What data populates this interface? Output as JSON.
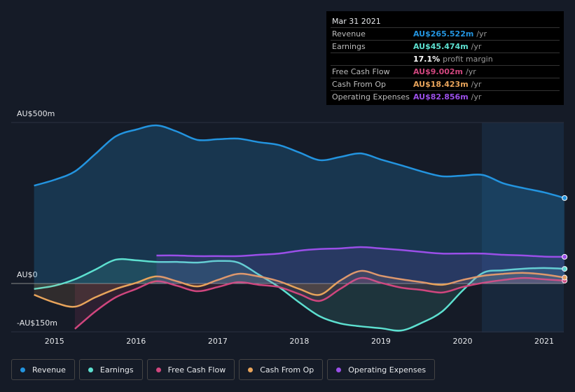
{
  "chart_data": {
    "type": "line",
    "x": [
      2014.75,
      2015,
      2015.25,
      2015.5,
      2015.75,
      2016,
      2016.25,
      2016.5,
      2016.75,
      2017,
      2017.25,
      2017.5,
      2017.75,
      2018,
      2018.25,
      2018.5,
      2018.75,
      2019,
      2019.25,
      2019.5,
      2019.75,
      2020,
      2020.25,
      2020.5,
      2020.75,
      2021,
      2021.25
    ],
    "xlim": [
      2014.47,
      2021.24
    ],
    "xticks": [
      2015,
      2016,
      2017,
      2018,
      2019,
      2020,
      2021
    ],
    "ylim": [
      -150,
      500
    ],
    "yticks": [
      {
        "value": 500,
        "label": "AU$500m"
      },
      {
        "value": 0,
        "label": "AU$0"
      },
      {
        "value": -150,
        "label": "-AU$150m"
      }
    ],
    "series": [
      {
        "name": "Revenue",
        "color": "#2394df",
        "values": [
          304,
          322,
          348,
          402,
          457,
          478,
          491,
          472,
          446,
          448,
          450,
          439,
          430,
          407,
          383,
          393,
          404,
          385,
          367,
          348,
          333,
          335,
          337,
          311,
          296,
          283,
          265.5
        ]
      },
      {
        "name": "Earnings",
        "color": "#5de0d0",
        "values": [
          -17,
          -7,
          13,
          43,
          74,
          72,
          67,
          67,
          65,
          70,
          65,
          28,
          -11,
          -59,
          -102,
          -124,
          -133,
          -139,
          -146,
          -122,
          -87,
          -22,
          33,
          41,
          46,
          48,
          45.5
        ]
      },
      {
        "name": "Free Cash Flow",
        "color": "#d0467e",
        "values": [
          null,
          null,
          -141,
          -87,
          -43,
          -17,
          7,
          -7,
          -24,
          -11,
          4,
          -4,
          -11,
          -33,
          -54,
          -17,
          17,
          2,
          -13,
          -20,
          -28,
          -11,
          2,
          11,
          17,
          13,
          9.0
        ]
      },
      {
        "name": "Cash From Op",
        "color": "#e8a45b",
        "values": [
          -35,
          -59,
          -72,
          -43,
          -17,
          2,
          22,
          7,
          -9,
          11,
          30,
          22,
          7,
          -17,
          -35,
          9,
          39,
          24,
          13,
          4,
          -4,
          11,
          24,
          30,
          33,
          28,
          18.4
        ]
      },
      {
        "name": "Operating Expenses",
        "color": "#9a4fe8",
        "values": [
          null,
          null,
          null,
          null,
          null,
          null,
          87,
          87,
          85,
          85,
          85,
          89,
          93,
          102,
          107,
          109,
          113,
          109,
          104,
          98,
          93,
          93,
          93,
          89,
          87,
          83.5,
          82.9
        ]
      }
    ]
  },
  "tooltip": {
    "date": "Mar 31 2021",
    "rows": [
      {
        "label": "Revenue",
        "value": "AU$265.522m",
        "unit": "/yr"
      },
      {
        "label": "Earnings",
        "value": "AU$45.474m",
        "unit": "/yr"
      },
      {
        "label": "",
        "value": "17.1%",
        "unit": "profit margin"
      },
      {
        "label": "Free Cash Flow",
        "value": "AU$9.002m",
        "unit": "/yr"
      },
      {
        "label": "Cash From Op",
        "value": "AU$18.423m",
        "unit": "/yr"
      },
      {
        "label": "Operating Expenses",
        "value": "AU$82.856m",
        "unit": "/yr"
      }
    ]
  }
}
